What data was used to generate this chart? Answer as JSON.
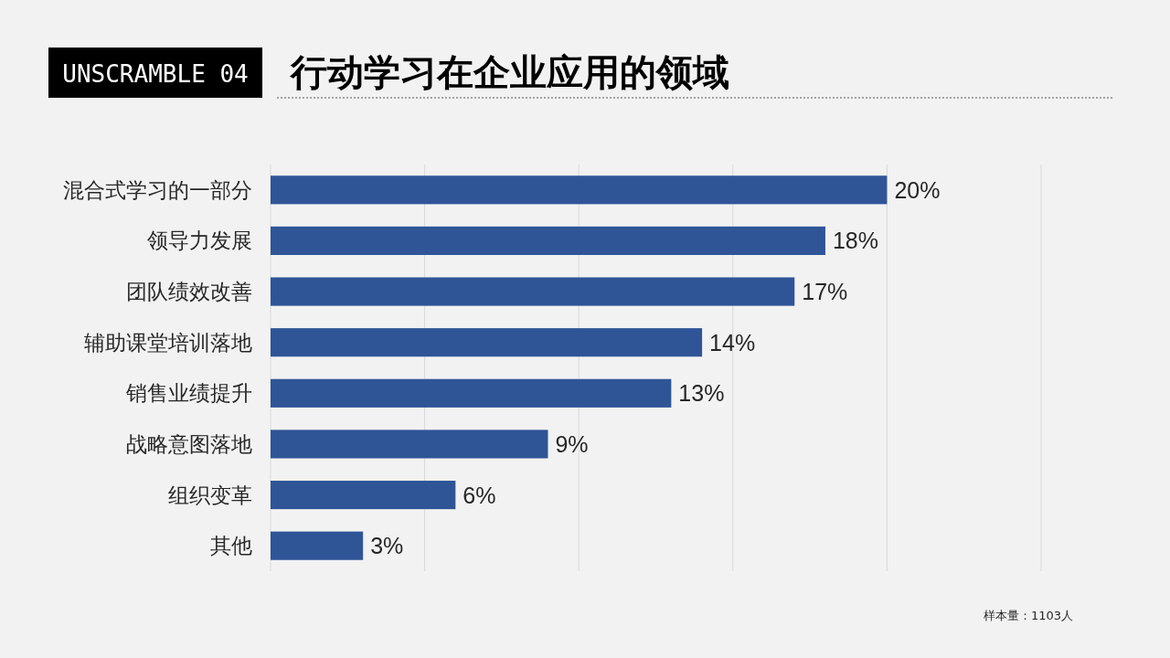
{
  "chart_data": {
    "type": "bar",
    "orientation": "horizontal",
    "title": "行动学习在企业应用的领域",
    "subtitle": "UNSCRAMBLE 04",
    "categories": [
      "混合式学习的一部分",
      "领导力发展",
      "团队绩效改善",
      "辅助课堂培训落地",
      "销售业绩提升",
      "战略意图落地",
      "组织变革",
      "其他"
    ],
    "values": [
      20,
      18,
      17,
      14,
      13,
      9,
      6,
      3
    ],
    "value_labels": [
      "20%",
      "18%",
      "17%",
      "14%",
      "13%",
      "9%",
      "6%",
      "3%"
    ],
    "color": "#2f5597",
    "xlim": [
      0,
      25
    ],
    "xticks": [
      {
        "value": 0,
        "label": null
      },
      {
        "value": 5,
        "label": null
      },
      {
        "value": 10,
        "label": null
      },
      {
        "value": 15,
        "label": null
      },
      {
        "value": 20,
        "label": null
      },
      {
        "value": 25,
        "label": null
      }
    ],
    "grid": "x",
    "tick_labels": "y",
    "annotations": [
      "样本量：1103人"
    ]
  }
}
